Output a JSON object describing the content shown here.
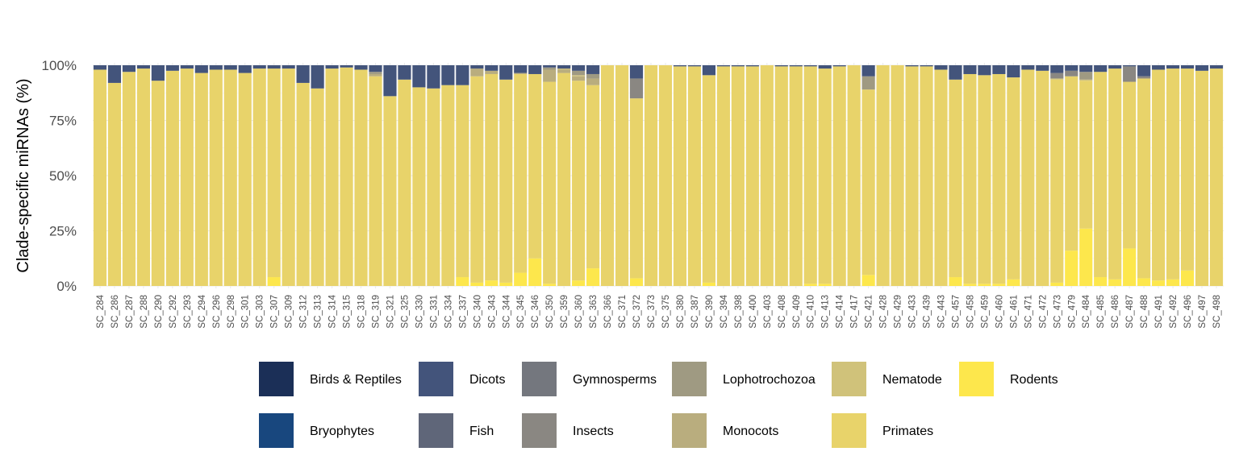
{
  "chart_data": {
    "type": "bar",
    "stacked": true,
    "orientation": "vertical",
    "title": "",
    "xlabel": "",
    "ylabel": "Clade-specific miRNAs (%)",
    "ylim": [
      0,
      100
    ],
    "y_ticks": [
      "0%",
      "25%",
      "50%",
      "75%",
      "100%"
    ],
    "y_tick_values": [
      0,
      25,
      50,
      75,
      100
    ],
    "grid": true,
    "legend_position": "bottom",
    "categories": [
      "SC_284",
      "SC_286",
      "SC_287",
      "SC_288",
      "SC_290",
      "SC_292",
      "SC_293",
      "SC_294",
      "SC_296",
      "SC_298",
      "SC_301",
      "SC_303",
      "SC_307",
      "SC_309",
      "SC_312",
      "SC_313",
      "SC_314",
      "SC_315",
      "SC_318",
      "SC_319",
      "SC_321",
      "SC_325",
      "SC_330",
      "SC_331",
      "SC_334",
      "SC_337",
      "SC_340",
      "SC_343",
      "SC_344",
      "SC_345",
      "SC_346",
      "SC_350",
      "SC_359",
      "SC_360",
      "SC_363",
      "SC_366",
      "SC_371",
      "SC_372",
      "SC_373",
      "SC_375",
      "SC_380",
      "SC_387",
      "SC_390",
      "SC_394",
      "SC_398",
      "SC_400",
      "SC_403",
      "SC_408",
      "SC_409",
      "SC_410",
      "SC_413",
      "SC_414",
      "SC_417",
      "SC_421",
      "SC_428",
      "SC_429",
      "SC_433",
      "SC_439",
      "SC_443",
      "SC_457",
      "SC_458",
      "SC_459",
      "SC_460",
      "SC_461",
      "SC_471",
      "SC_472",
      "SC_473",
      "SC_479",
      "SC_484",
      "SC_485",
      "SC_486",
      "SC_487",
      "SC_488",
      "SC_491",
      "SC_492",
      "SC_496",
      "SC_497",
      "SC_498"
    ],
    "series": [
      {
        "name": "Rodents",
        "color": "#FDE74C",
        "values": [
          0,
          0,
          0,
          0,
          0,
          0,
          0,
          0,
          0,
          0,
          0,
          0,
          4,
          0,
          0,
          0,
          0,
          0,
          0,
          0,
          0,
          0,
          0,
          0,
          0,
          4,
          1.5,
          2.5,
          1.5,
          6,
          12.5,
          1,
          0,
          2.5,
          8,
          0,
          0,
          3.5,
          0,
          0,
          0,
          0,
          1.5,
          0,
          0,
          0,
          0,
          0,
          0,
          1,
          1,
          0,
          0,
          5,
          0,
          0,
          0,
          0,
          0,
          4,
          1,
          1,
          1,
          3,
          0,
          0,
          1.5,
          16,
          26,
          4,
          3,
          17,
          3.5,
          2.5,
          3,
          7,
          0,
          0
        ]
      },
      {
        "name": "Primates",
        "color": "#E8D36A",
        "values": [
          98,
          92,
          97,
          98.5,
          93,
          97.5,
          98.5,
          96.5,
          98,
          98,
          96.5,
          98.5,
          94.5,
          98.5,
          92,
          89.5,
          98.5,
          99,
          98,
          95,
          86,
          93.5,
          90,
          89.5,
          91,
          87,
          93.5,
          93.5,
          92,
          90,
          83.5,
          91.5,
          96.5,
          90.5,
          83,
          100,
          100,
          81.5,
          100,
          100,
          99.5,
          99.5,
          94,
          99.5,
          99.5,
          99.5,
          100,
          99.5,
          99.5,
          98.5,
          97.5,
          99.5,
          100,
          84,
          100,
          100,
          99.5,
          99.5,
          98,
          89.5,
          95,
          94.5,
          95,
          91.5,
          98,
          97.5,
          92,
          79,
          67,
          93,
          95.5,
          75.5,
          90.5,
          95.5,
          95.5,
          91.5,
          97.5,
          98.5
        ]
      },
      {
        "name": "Monocots",
        "color": "#B9AD7E",
        "values": [
          0,
          0,
          0,
          0,
          0,
          0,
          0,
          0,
          0,
          0,
          0,
          0,
          0,
          0,
          0,
          0,
          0,
          0,
          0,
          1,
          0,
          0,
          0,
          0,
          0,
          0,
          3.5,
          1.5,
          0,
          0.5,
          0,
          5.5,
          1.5,
          2,
          3,
          0,
          0,
          0,
          0,
          0,
          0,
          0,
          0,
          0,
          0,
          0,
          0,
          0,
          0,
          0,
          0,
          0,
          0,
          0,
          0,
          0,
          0,
          0,
          0,
          0,
          0,
          0,
          0,
          0,
          0,
          0,
          0,
          0,
          0,
          0,
          0,
          0,
          0,
          0,
          0,
          0,
          0,
          0
        ]
      },
      {
        "name": "Nematode",
        "color": "#D0C27A",
        "values": [
          0,
          0,
          0,
          0,
          0,
          0,
          0,
          0,
          0,
          0,
          0,
          0,
          0,
          0,
          0,
          0,
          0,
          0,
          0,
          0,
          0,
          0,
          0,
          0,
          0,
          0,
          0,
          0,
          0,
          0,
          0,
          0,
          0.5,
          0.5,
          0,
          0,
          0,
          0,
          0,
          0,
          0,
          0,
          0,
          0,
          0,
          0,
          0,
          0,
          0,
          0,
          0,
          0,
          0,
          0,
          0,
          0,
          0,
          0,
          0,
          0,
          0,
          0,
          0,
          0,
          0,
          0,
          0.5,
          0,
          0.5,
          0,
          0,
          0,
          0,
          0,
          0,
          0,
          0,
          0
        ]
      },
      {
        "name": "Lophotrochozoa",
        "color": "#9F9A82",
        "values": [
          0,
          0,
          0,
          0,
          0,
          0,
          0,
          0,
          0,
          0,
          0,
          0,
          0,
          0,
          0,
          0,
          0,
          0,
          0,
          1,
          0,
          0,
          0,
          0,
          0,
          0,
          0,
          0,
          0,
          0,
          0,
          1,
          0,
          2,
          2,
          0,
          0,
          0,
          0,
          0,
          0,
          0,
          0,
          0,
          0,
          0,
          0,
          0,
          0,
          0,
          0,
          0,
          0,
          6,
          0,
          0,
          0,
          0,
          0,
          0,
          0,
          0,
          0,
          0,
          0,
          0,
          0,
          0,
          3.5,
          0,
          0,
          0,
          0,
          0,
          0,
          0,
          0,
          0
        ]
      },
      {
        "name": "Insects",
        "color": "#8A8782",
        "values": [
          0,
          0,
          0,
          0,
          0,
          0,
          0,
          0,
          0,
          0,
          0,
          0,
          0,
          0,
          0,
          0,
          0,
          0,
          0,
          0,
          0,
          0,
          0,
          0,
          0,
          0,
          0,
          0,
          0,
          0,
          0,
          0,
          0,
          0,
          0,
          0,
          0,
          9,
          0,
          0,
          0,
          0,
          0,
          0,
          0,
          0,
          0,
          0,
          0,
          0,
          0,
          0,
          0,
          0,
          0,
          0,
          0,
          0,
          0,
          0,
          0,
          0,
          0,
          0,
          0,
          0,
          2.5,
          2.5,
          0,
          0,
          0,
          7,
          1,
          0,
          0,
          0,
          0,
          0
        ]
      },
      {
        "name": "Gymnosperms",
        "color": "#74777E",
        "values": [
          0,
          0,
          0,
          0,
          0,
          0,
          0,
          0,
          0,
          0,
          0,
          0,
          0,
          0,
          0,
          0,
          0,
          0,
          0,
          0,
          0,
          0,
          0,
          0,
          0,
          0,
          0,
          0,
          0,
          0,
          0,
          0,
          0,
          0,
          0,
          0,
          0,
          0,
          0,
          0,
          0,
          0,
          0,
          0,
          0,
          0,
          0,
          0,
          0,
          0,
          0,
          0,
          0,
          0,
          0,
          0,
          0,
          0,
          0,
          0,
          0,
          0,
          0,
          0,
          0,
          0,
          0,
          0,
          0,
          0,
          0,
          0,
          0,
          0,
          0,
          0,
          0,
          0
        ]
      },
      {
        "name": "Fish",
        "color": "#5F6679",
        "values": [
          0,
          0,
          0,
          0,
          0,
          0,
          0,
          0,
          0,
          0,
          0,
          0,
          0,
          0,
          0,
          0,
          0,
          0,
          0,
          0,
          0,
          0,
          0,
          0,
          0,
          0,
          0,
          0,
          0,
          0,
          0,
          0,
          0,
          0,
          0,
          0,
          0,
          0,
          0,
          0,
          0,
          0,
          0,
          0,
          0,
          0,
          0,
          0,
          0,
          0,
          0,
          0,
          0,
          0,
          0,
          0,
          0,
          0,
          0,
          0,
          0,
          0,
          0,
          0,
          0,
          0,
          0,
          0,
          0,
          0,
          0,
          0,
          0,
          0,
          0,
          0,
          0,
          0
        ]
      },
      {
        "name": "Dicots",
        "color": "#43547B",
        "values": [
          2,
          8,
          3,
          1.5,
          7,
          2.5,
          1.5,
          3.5,
          2,
          2,
          3.5,
          1.5,
          1.5,
          1.5,
          8,
          10.5,
          1.5,
          1,
          2,
          3,
          14,
          6.5,
          10,
          10.5,
          9,
          9,
          1.5,
          2.5,
          6.5,
          3.5,
          4,
          1,
          1.5,
          2.5,
          4,
          0,
          0,
          6,
          0,
          0,
          0.5,
          0.5,
          4.5,
          0.5,
          0.5,
          0.5,
          0,
          0.5,
          0.5,
          0.5,
          1.5,
          0.5,
          0,
          5,
          0,
          0,
          0.5,
          0.5,
          2,
          6.5,
          4,
          4.5,
          4,
          5.5,
          2,
          2.5,
          3.5,
          2.5,
          3,
          3,
          1.5,
          0.5,
          5,
          2,
          1.5,
          1.5,
          2.5,
          1.5
        ]
      },
      {
        "name": "Bryophytes",
        "color": "#18477E",
        "values": [
          0,
          0,
          0,
          0,
          0,
          0,
          0,
          0,
          0,
          0,
          0,
          0,
          0,
          0,
          0,
          0,
          0,
          0,
          0,
          0,
          0,
          0,
          0,
          0,
          0,
          0,
          0,
          0,
          0,
          0,
          0,
          0,
          0,
          0,
          0,
          0,
          0,
          0,
          0,
          0,
          0,
          0,
          0,
          0,
          0,
          0,
          0,
          0,
          0,
          0,
          0,
          0,
          0,
          0,
          0,
          0,
          0,
          0,
          0,
          0,
          0,
          0,
          0,
          0,
          0,
          0,
          0,
          0,
          0,
          0,
          0,
          0,
          0,
          0,
          0,
          0,
          0,
          0
        ]
      },
      {
        "name": "Birds & Reptiles",
        "color": "#1B2F57",
        "values": [
          0,
          0,
          0,
          0,
          0,
          0,
          0,
          0,
          0,
          0,
          0,
          0,
          0,
          0,
          0,
          0,
          0,
          0,
          0,
          0,
          0,
          0,
          0,
          0,
          0,
          0,
          0,
          0,
          0,
          0,
          0,
          0,
          0,
          0,
          0,
          0,
          0,
          0,
          0,
          0,
          0,
          0,
          0,
          0,
          0,
          0,
          0,
          0,
          0,
          0,
          0,
          0,
          0,
          0,
          0,
          0,
          0,
          0,
          0,
          0,
          0,
          0,
          0,
          0,
          0,
          0,
          0,
          0,
          0,
          0,
          0,
          0,
          0,
          0,
          0,
          0,
          0,
          0
        ]
      }
    ],
    "legend": [
      {
        "label": "Birds & Reptiles",
        "color": "#1B2F57"
      },
      {
        "label": "Dicots",
        "color": "#43547B"
      },
      {
        "label": "Gymnosperms",
        "color": "#74777E"
      },
      {
        "label": "Lophotrochozoa",
        "color": "#9F9A82"
      },
      {
        "label": "Nematode",
        "color": "#D0C27A"
      },
      {
        "label": "Rodents",
        "color": "#FDE74C"
      },
      {
        "label": "Bryophytes",
        "color": "#18477E"
      },
      {
        "label": "Fish",
        "color": "#5F6679"
      },
      {
        "label": "Insects",
        "color": "#8A8782"
      },
      {
        "label": "Monocots",
        "color": "#B9AD7E"
      },
      {
        "label": "Primates",
        "color": "#E8D36A"
      }
    ]
  }
}
